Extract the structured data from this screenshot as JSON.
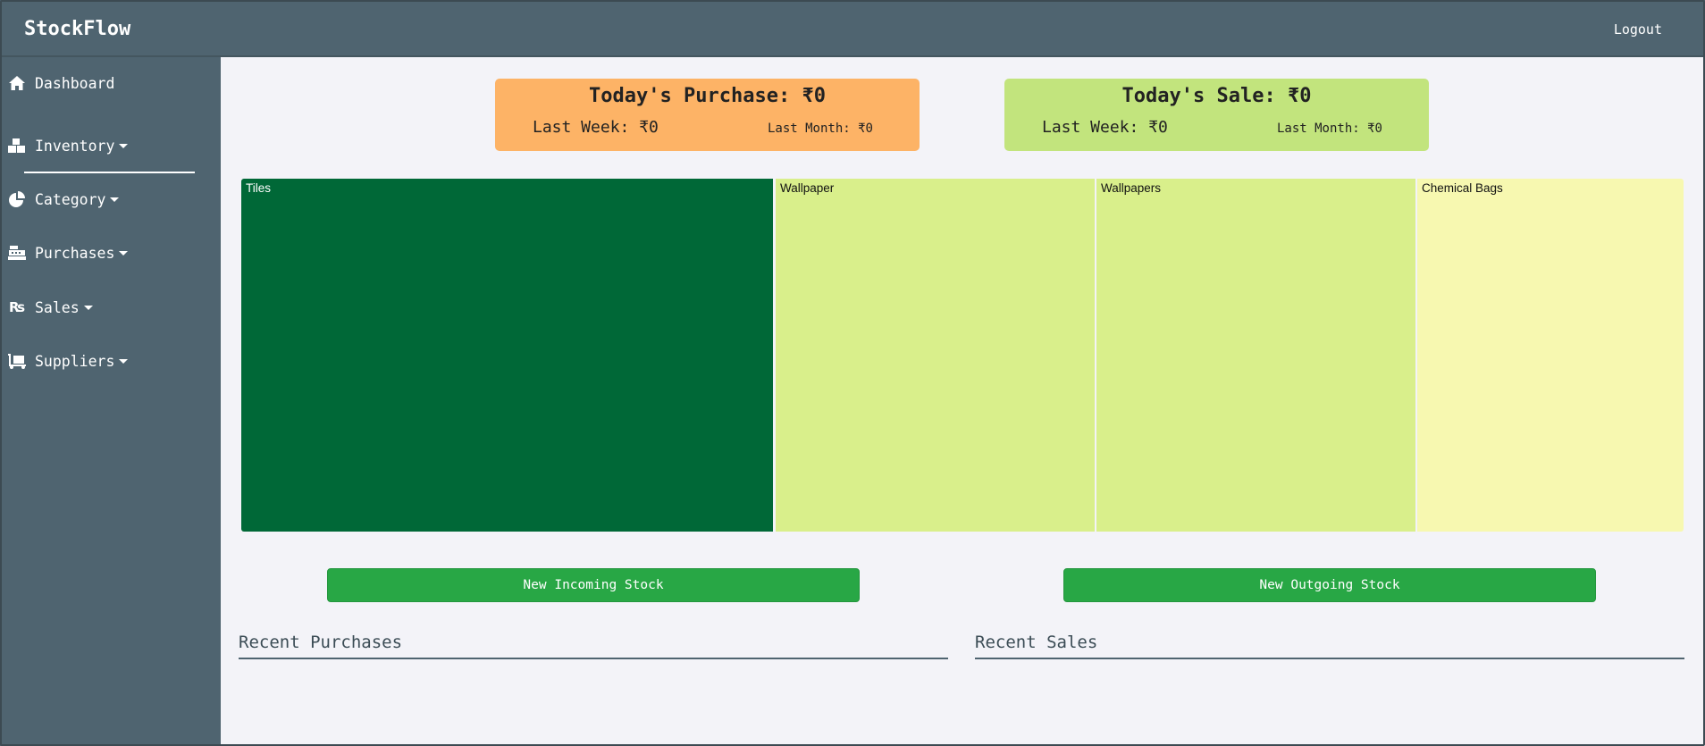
{
  "app": {
    "brand": "StockFlow",
    "logout_label": "Logout"
  },
  "sidebar": {
    "items": [
      {
        "label": "Dashboard",
        "icon": "home-icon",
        "dropdown": false
      },
      {
        "label": "Inventory",
        "icon": "boxes-icon",
        "dropdown": true
      },
      {
        "label": "Category",
        "icon": "pie-chart-icon",
        "dropdown": true
      },
      {
        "label": "Purchases",
        "icon": "cash-register-icon",
        "dropdown": true
      },
      {
        "label": "Sales",
        "icon": "rupee-sign-icon",
        "dropdown": true
      },
      {
        "label": "Suppliers",
        "icon": "dolly-icon",
        "dropdown": true
      }
    ]
  },
  "stats": {
    "purchase": {
      "title": "Today's Purchase: ₹0",
      "last_week": "Last Week: ₹0",
      "last_month": "Last Month: ₹0",
      "color": "#fdb366"
    },
    "sale": {
      "title": "Today's Sale: ₹0",
      "last_week": "Last Week: ₹0",
      "last_month": "Last Month: ₹0",
      "color": "#c2e47d"
    }
  },
  "chart_data": {
    "type": "treemap",
    "categories": [
      "Tiles",
      "Wallpaper",
      "Wallpapers",
      "Chemical Bags"
    ],
    "colors": [
      "#006837",
      "#d9ef8b",
      "#d9ef8b",
      "#f7f8b0"
    ]
  },
  "actions": {
    "incoming_label": "New Incoming Stock",
    "outgoing_label": "New Outgoing Stock"
  },
  "sections": {
    "recent_purchases": "Recent Purchases",
    "recent_sales": "Recent Sales"
  }
}
